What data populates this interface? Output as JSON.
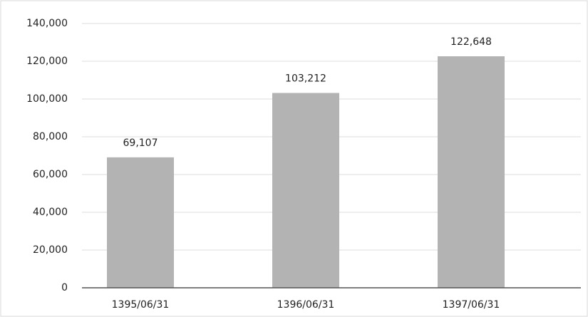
{
  "chart_data": {
    "type": "bar",
    "categories": [
      "1395/06/31",
      "1396/06/31",
      "1397/06/31"
    ],
    "values": [
      69107,
      103212,
      122648
    ],
    "value_labels": [
      "69,107",
      "103,212",
      "122,648"
    ],
    "color": "#b3b3b3",
    "ylim": [
      0,
      140000
    ],
    "yticks": [
      0,
      {
        "value": 20000,
        "label": "20,000"
      },
      {
        "value": 40000,
        "label": "40,000"
      },
      {
        "value": 60000,
        "label": "60,000"
      },
      {
        "value": 80000,
        "label": "80,000"
      },
      {
        "value": 100000,
        "label": "100,000"
      },
      {
        "value": 120000,
        "label": "120,000"
      },
      {
        "value": 140000,
        "label": "140,000"
      }
    ],
    "grid": true
  }
}
